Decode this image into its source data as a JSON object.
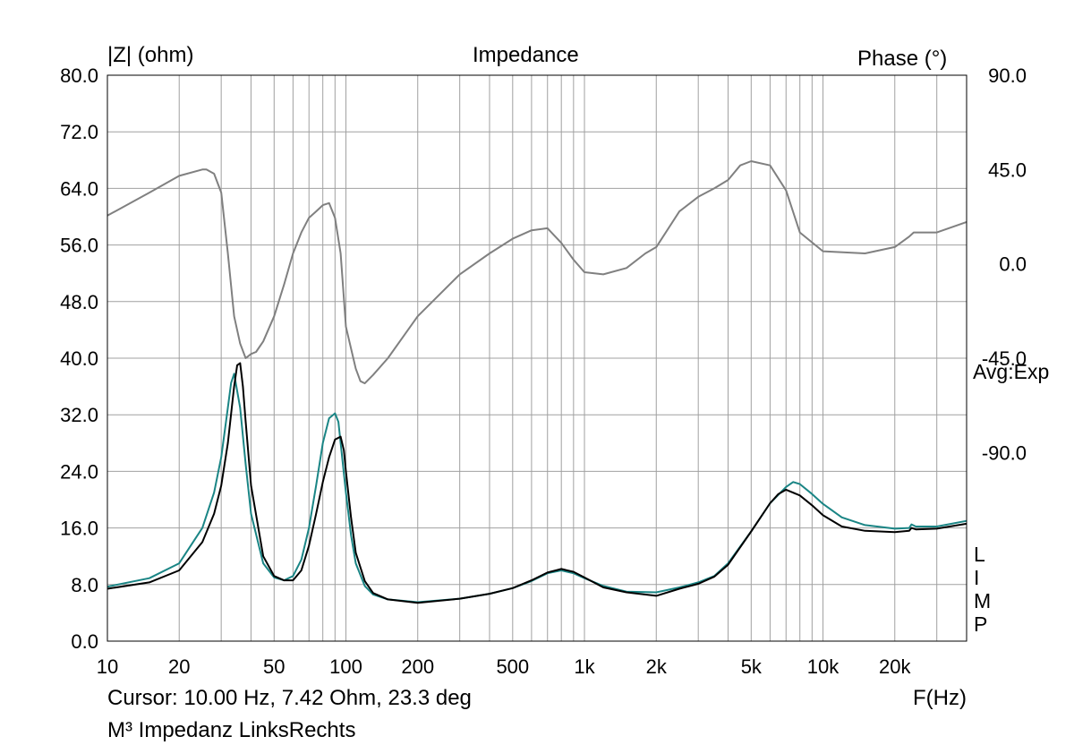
{
  "chart_data": {
    "type": "line",
    "title": "Impedance",
    "left_axis_label": "|Z| (ohm)",
    "right_axis_label": "Phase (°)",
    "xlabel": "F(Hz)",
    "x_scale": "log",
    "xlim": [
      10,
      40000
    ],
    "ylim_left": [
      0,
      80
    ],
    "ylim_right": [
      -180,
      90
    ],
    "x_ticks": [
      {
        "value": 10,
        "label": "10"
      },
      {
        "value": 20,
        "label": "20"
      },
      {
        "value": 50,
        "label": "50"
      },
      {
        "value": 100,
        "label": "100"
      },
      {
        "value": 200,
        "label": "200"
      },
      {
        "value": 500,
        "label": "500"
      },
      {
        "value": 1000,
        "label": "1k"
      },
      {
        "value": 2000,
        "label": "2k"
      },
      {
        "value": 5000,
        "label": "5k"
      },
      {
        "value": 10000,
        "label": "10k"
      },
      {
        "value": 20000,
        "label": "20k"
      }
    ],
    "y_ticks_left": [
      {
        "value": 0,
        "label": "0.0"
      },
      {
        "value": 8,
        "label": "8.0"
      },
      {
        "value": 16,
        "label": "16.0"
      },
      {
        "value": 24,
        "label": "24.0"
      },
      {
        "value": 32,
        "label": "32.0"
      },
      {
        "value": 40,
        "label": "40.0"
      },
      {
        "value": 48,
        "label": "48.0"
      },
      {
        "value": 56,
        "label": "56.0"
      },
      {
        "value": 64,
        "label": "64.0"
      },
      {
        "value": 72,
        "label": "72.0"
      },
      {
        "value": 80,
        "label": "80.0"
      }
    ],
    "y_ticks_right": [
      {
        "value": -90,
        "label": "-90.0"
      },
      {
        "value": -45,
        "label": "-45.0"
      },
      {
        "value": 0,
        "label": "0.0"
      },
      {
        "value": 45,
        "label": "45.0"
      },
      {
        "value": 90,
        "label": "90.0"
      }
    ],
    "grid": true,
    "series": [
      {
        "axis": "left",
        "color": "#1a8585",
        "x": [
          10,
          15,
          20,
          25,
          28,
          30,
          32,
          33,
          34,
          36,
          38,
          40,
          45,
          50,
          55,
          60,
          65,
          70,
          75,
          80,
          85,
          90,
          93,
          95,
          100,
          105,
          110,
          120,
          130,
          150,
          200,
          300,
          400,
          500,
          600,
          700,
          800,
          900,
          1000,
          1200,
          1500,
          2000,
          2500,
          3000,
          3500,
          4000,
          5000,
          6000,
          7000,
          7500,
          8000,
          9000,
          10000,
          12000,
          15000,
          20000,
          23000,
          23500,
          24500,
          30000,
          40000
        ],
        "y": [
          7.7,
          8.9,
          11.0,
          16.0,
          21.0,
          26.0,
          33.0,
          36.5,
          37.8,
          33.0,
          25.0,
          18.0,
          11.0,
          9.0,
          8.6,
          9.2,
          11.5,
          16.0,
          22.0,
          28.0,
          31.5,
          32.2,
          31.0,
          28.0,
          21.0,
          15.0,
          11.0,
          7.8,
          6.6,
          5.9,
          5.5,
          6.0,
          6.7,
          7.5,
          8.5,
          9.6,
          10.0,
          9.6,
          8.9,
          7.8,
          7.0,
          6.9,
          7.6,
          8.3,
          9.2,
          11.0,
          15.5,
          19.5,
          21.8,
          22.5,
          22.2,
          20.8,
          19.4,
          17.5,
          16.4,
          15.9,
          16.0,
          16.5,
          16.2,
          16.2,
          17.0
        ]
      },
      {
        "axis": "left",
        "color": "#000000",
        "x": [
          10,
          15,
          20,
          25,
          28,
          30,
          32,
          34,
          35,
          36,
          37,
          38,
          40,
          45,
          50,
          55,
          60,
          65,
          70,
          75,
          80,
          85,
          90,
          95,
          98,
          100,
          105,
          110,
          120,
          130,
          150,
          200,
          300,
          400,
          500,
          600,
          700,
          800,
          900,
          1000,
          1200,
          1500,
          2000,
          2500,
          3000,
          3500,
          4000,
          5000,
          6000,
          6500,
          7000,
          8000,
          9000,
          10000,
          12000,
          15000,
          20000,
          23000,
          23500,
          24500,
          30000,
          40000
        ],
        "y": [
          7.4,
          8.3,
          10.0,
          14.0,
          18.0,
          22.0,
          28.0,
          36.0,
          39.0,
          39.3,
          36.0,
          31.0,
          22.0,
          12.0,
          9.2,
          8.6,
          8.6,
          10.0,
          13.5,
          18.0,
          22.5,
          26.0,
          28.5,
          28.9,
          27.0,
          24.0,
          17.5,
          12.5,
          8.5,
          6.8,
          5.9,
          5.4,
          6.0,
          6.7,
          7.5,
          8.6,
          9.7,
          10.2,
          9.8,
          9.0,
          7.6,
          6.9,
          6.4,
          7.4,
          8.1,
          9.1,
          10.8,
          15.5,
          19.5,
          20.8,
          21.4,
          20.6,
          19.2,
          17.8,
          16.2,
          15.6,
          15.4,
          15.6,
          16.0,
          15.8,
          15.9,
          16.6
        ]
      },
      {
        "axis": "right",
        "color": "#808080",
        "x": [
          10,
          15,
          20,
          25,
          26,
          28,
          30,
          32,
          34,
          36,
          38,
          40,
          42,
          45,
          50,
          55,
          60,
          65,
          70,
          75,
          80,
          85,
          90,
          95,
          100,
          110,
          115,
          120,
          130,
          150,
          200,
          300,
          400,
          500,
          600,
          700,
          800,
          900,
          1000,
          1200,
          1500,
          1800,
          2000,
          2500,
          3000,
          3500,
          4000,
          4500,
          5000,
          6000,
          7000,
          8000,
          10000,
          15000,
          20000,
          23000,
          24000,
          30000,
          40000
        ],
        "y": [
          23.0,
          34.0,
          42.0,
          45.0,
          45.0,
          43.0,
          34.0,
          5.0,
          -25.0,
          -38.0,
          -45.0,
          -43.0,
          -42.0,
          -37.0,
          -25.0,
          -10.0,
          5.0,
          15.0,
          22.0,
          25.0,
          28.0,
          29.0,
          22.0,
          5.0,
          -30.0,
          -50.0,
          -56.0,
          -57.0,
          -53.0,
          -45.0,
          -25.0,
          -5.0,
          5.0,
          12.0,
          16.0,
          17.0,
          10.0,
          2.0,
          -4.0,
          -5.0,
          -2.0,
          5.0,
          8.0,
          25.0,
          32.0,
          36.0,
          40.0,
          47.0,
          49.0,
          47.0,
          35.0,
          15.0,
          6.0,
          5.0,
          8.0,
          13.0,
          15.0,
          15.0,
          20.0
        ]
      }
    ]
  },
  "labels": {
    "title": "Impedance",
    "left_axis": "|Z| (ohm)",
    "right_axis": "Phase (°)",
    "avg": "Avg:Exp",
    "limp": [
      "L",
      "I",
      "M",
      "P"
    ],
    "xlabel": "F(Hz)",
    "cursor": "Cursor: 10.00 Hz, 7.42 Ohm, 23.3 deg",
    "file": "M³ Impedanz LinksRechts"
  }
}
